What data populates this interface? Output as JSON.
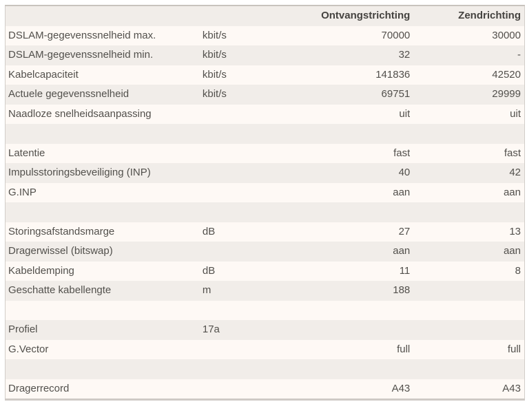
{
  "colors": {
    "row_light": "#fef9f5",
    "row_dark": "#f1ede9",
    "border_bottom": "#cfcac5",
    "border_top": "#c8c3bd",
    "text": "#52504c",
    "header_text": "#454340",
    "page_background": "#ffffff"
  },
  "table": {
    "headers": {
      "label": "",
      "unit": "",
      "rx": "Ontvangstrichting",
      "tx": "Zendrichting"
    },
    "rows": [
      {
        "label": "DSLAM-gegevenssnelheid max.",
        "unit": "kbit/s",
        "rx": "70000",
        "tx": "30000"
      },
      {
        "label": "DSLAM-gegevenssnelheid min.",
        "unit": "kbit/s",
        "rx": "32",
        "tx": "-"
      },
      {
        "label": "Kabelcapaciteit",
        "unit": "kbit/s",
        "rx": "141836",
        "tx": "42520"
      },
      {
        "label": "Actuele gegevenssnelheid",
        "unit": "kbit/s",
        "rx": "69751",
        "tx": "29999"
      },
      {
        "label": "Naadloze snelheidsaanpassing",
        "unit": "",
        "rx": "uit",
        "tx": "uit"
      },
      {
        "label": "",
        "unit": "",
        "rx": "",
        "tx": ""
      },
      {
        "label": "Latentie",
        "unit": "",
        "rx": "fast",
        "tx": "fast"
      },
      {
        "label": "Impulsstoringsbeveiliging (INP)",
        "unit": "",
        "rx": "40",
        "tx": "42"
      },
      {
        "label": "G.INP",
        "unit": "",
        "rx": "aan",
        "tx": "aan"
      },
      {
        "label": "",
        "unit": "",
        "rx": "",
        "tx": ""
      },
      {
        "label": "Storingsafstandsmarge",
        "unit": "dB",
        "rx": "27",
        "tx": "13"
      },
      {
        "label": "Dragerwissel (bitswap)",
        "unit": "",
        "rx": "aan",
        "tx": "aan"
      },
      {
        "label": "Kabeldemping",
        "unit": "dB",
        "rx": "11",
        "tx": "8"
      },
      {
        "label": "Geschatte kabellengte",
        "unit": "m",
        "rx": "188",
        "tx": ""
      },
      {
        "label": "",
        "unit": "",
        "rx": "",
        "tx": ""
      },
      {
        "label": "Profiel",
        "unit": "17a",
        "rx": "",
        "tx": ""
      },
      {
        "label": "G.Vector",
        "unit": "",
        "rx": "full",
        "tx": "full"
      },
      {
        "label": "",
        "unit": "",
        "rx": "",
        "tx": ""
      },
      {
        "label": "Dragerrecord",
        "unit": "",
        "rx": "A43",
        "tx": "A43"
      }
    ]
  }
}
